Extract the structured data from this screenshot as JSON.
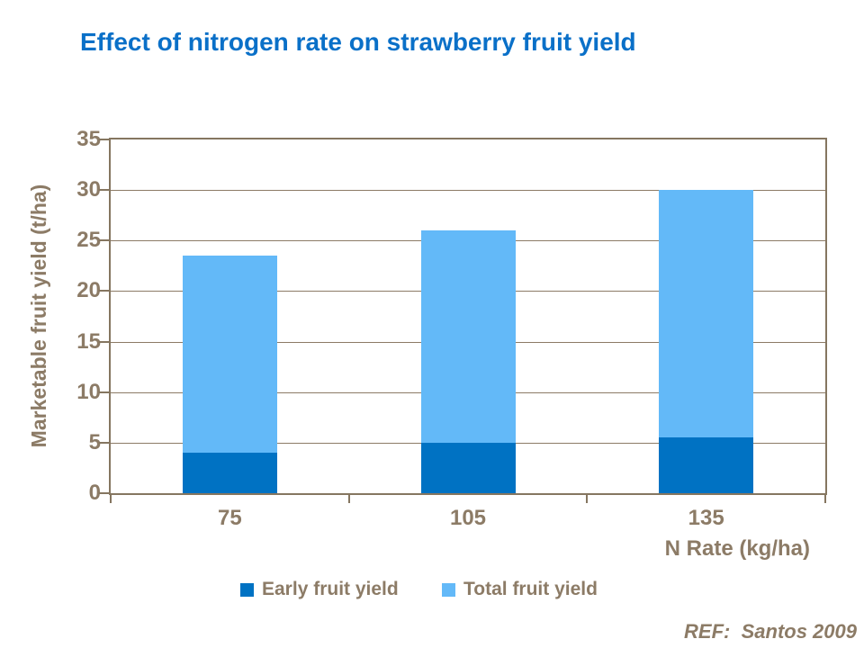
{
  "slide": {
    "title": "Effect of nitrogen rate on strawberry fruit yield",
    "footer_ref": "REF:  Santos 2009"
  },
  "colors": {
    "title_blue": "#0A70C8",
    "axis_text_brown": "#8C7B66",
    "axis_line_brown": "#857660",
    "early_bar_blue": "#0072C3",
    "total_bar_blue": "#63B9F8",
    "background": "#FFFFFF"
  },
  "chart_data": {
    "type": "bar",
    "stacked": true,
    "title": "Effect of nitrogen rate on strawberry fruit yield",
    "xlabel": "N Rate (kg/ha)",
    "ylabel": "Marketable fruit yield (t/ha)",
    "categories": [
      "75",
      "105",
      "135"
    ],
    "series": [
      {
        "name": "Early fruit yield",
        "color": "#0072C3",
        "values": [
          4,
          5,
          5.5
        ]
      },
      {
        "name": "Total fruit yield",
        "color": "#63B9F8",
        "values": [
          23.5,
          26,
          30
        ]
      }
    ],
    "segment_note": "Light segment is drawn from the early-yield value up to the total-yield value, so each bar top equals total fruit yield",
    "ylim": [
      0,
      35
    ],
    "ytick_step": 5,
    "grid": "horizontal",
    "legend_position": "bottom"
  }
}
